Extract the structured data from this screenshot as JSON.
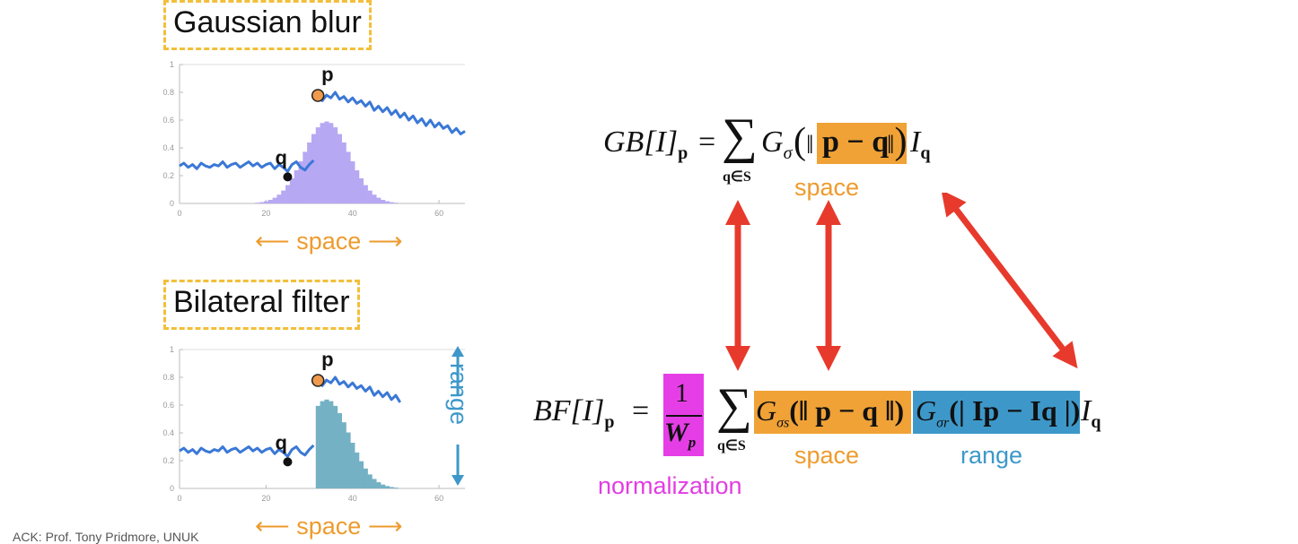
{
  "top_panel": {
    "title": "Gaussian blur",
    "point_p": "p",
    "point_q": "q",
    "axis_label": "space"
  },
  "bottom_panel": {
    "title": "Bilateral filter",
    "point_p": "p",
    "point_q": "q",
    "axis_label": "space",
    "range_label": "range"
  },
  "chart_data": [
    {
      "type": "line",
      "x_ticks": [
        "0",
        "20",
        "40",
        "60"
      ],
      "y_ticks": [
        "0",
        "0.2",
        "0.4",
        "0.6",
        "0.8",
        "1"
      ],
      "ylim": [
        0,
        1
      ],
      "xlim": [
        0,
        66
      ],
      "grid": false,
      "signal": [
        0.27,
        0.29,
        0.26,
        0.28,
        0.25,
        0.29,
        0.27,
        0.26,
        0.28,
        0.27,
        0.3,
        0.26,
        0.28,
        0.29,
        0.26,
        0.28,
        0.3,
        0.27,
        0.29,
        0.26,
        0.28,
        0.29,
        0.25,
        0.28,
        0.26,
        0.23,
        0.28,
        0.3,
        0.26,
        0.24,
        0.28,
        0.31,
        0.79,
        0.74,
        0.78,
        0.76,
        0.8,
        0.75,
        0.77,
        0.73,
        0.76,
        0.72,
        0.74,
        0.7,
        0.73,
        0.67,
        0.7,
        0.66,
        0.69,
        0.64,
        0.67,
        0.62,
        0.65,
        0.6,
        0.63,
        0.58,
        0.61,
        0.56,
        0.6,
        0.55,
        0.58,
        0.54,
        0.56,
        0.51,
        0.54,
        0.5,
        0.52
      ],
      "kernel_center": 34,
      "kernel_peak": 0.59,
      "kernel_type": "gaussian"
    },
    {
      "type": "line",
      "x_ticks": [
        "0",
        "20",
        "40",
        "60"
      ],
      "y_ticks": [
        "0",
        "0.2",
        "0.4",
        "0.6",
        "0.8",
        "1"
      ],
      "ylim": [
        0,
        1
      ],
      "xlim": [
        0,
        66
      ],
      "grid": false,
      "signal": [
        0.27,
        0.29,
        0.26,
        0.28,
        0.25,
        0.29,
        0.27,
        0.26,
        0.28,
        0.27,
        0.3,
        0.26,
        0.28,
        0.29,
        0.26,
        0.28,
        0.3,
        0.27,
        0.29,
        0.26,
        0.28,
        0.29,
        0.25,
        0.28,
        0.26,
        0.23,
        0.28,
        0.3,
        0.26,
        0.24,
        0.28,
        0.31,
        0.79,
        0.74,
        0.78,
        0.76,
        0.8,
        0.75,
        0.77,
        0.73,
        0.76,
        0.72,
        0.74,
        0.7,
        0.73,
        0.67,
        0.7,
        0.66,
        0.69,
        0.64,
        0.67,
        0.62
      ],
      "kernel_center": 34,
      "kernel_peak": 0.64,
      "kernel_type": "truncated"
    }
  ],
  "equation_gb": {
    "lhs": "GB[I]",
    "lhs_sub": "p",
    "equals": "=",
    "sum": "∑",
    "sum_sub": "q∈S",
    "g": "G",
    "g_sub": "σ",
    "open": "(",
    "norm_open": "‖",
    "highlight": "p − q",
    "norm_close": "‖",
    "close": ")",
    "i": "I",
    "i_sub": "q",
    "space_label": "space",
    "highlight_color": "#f0a236"
  },
  "equation_bf": {
    "lhs": "BF[I]",
    "lhs_sub": "p",
    "equals": "=",
    "frac_num": "1",
    "frac_den": "W",
    "frac_den_sub": "p",
    "sum": "∑",
    "sum_sub": "q∈S",
    "gs": "G",
    "gs_sub": "σs",
    "gs_body": "(‖ p − q ‖)",
    "gr": "G",
    "gr_sub": "σr",
    "gr_body": "(| Ip − Iq |)",
    "i": "I",
    "i_sub": "q",
    "space_label": "space",
    "range_label": "range",
    "normalization_label": "normalization",
    "space_color": "#f0a236",
    "range_color": "#3d98c9",
    "norm_color": "#e63ee6"
  },
  "arrows_color": "#e73a2c",
  "ack": "ACK: Prof. Tony Pridmore, UNUK"
}
